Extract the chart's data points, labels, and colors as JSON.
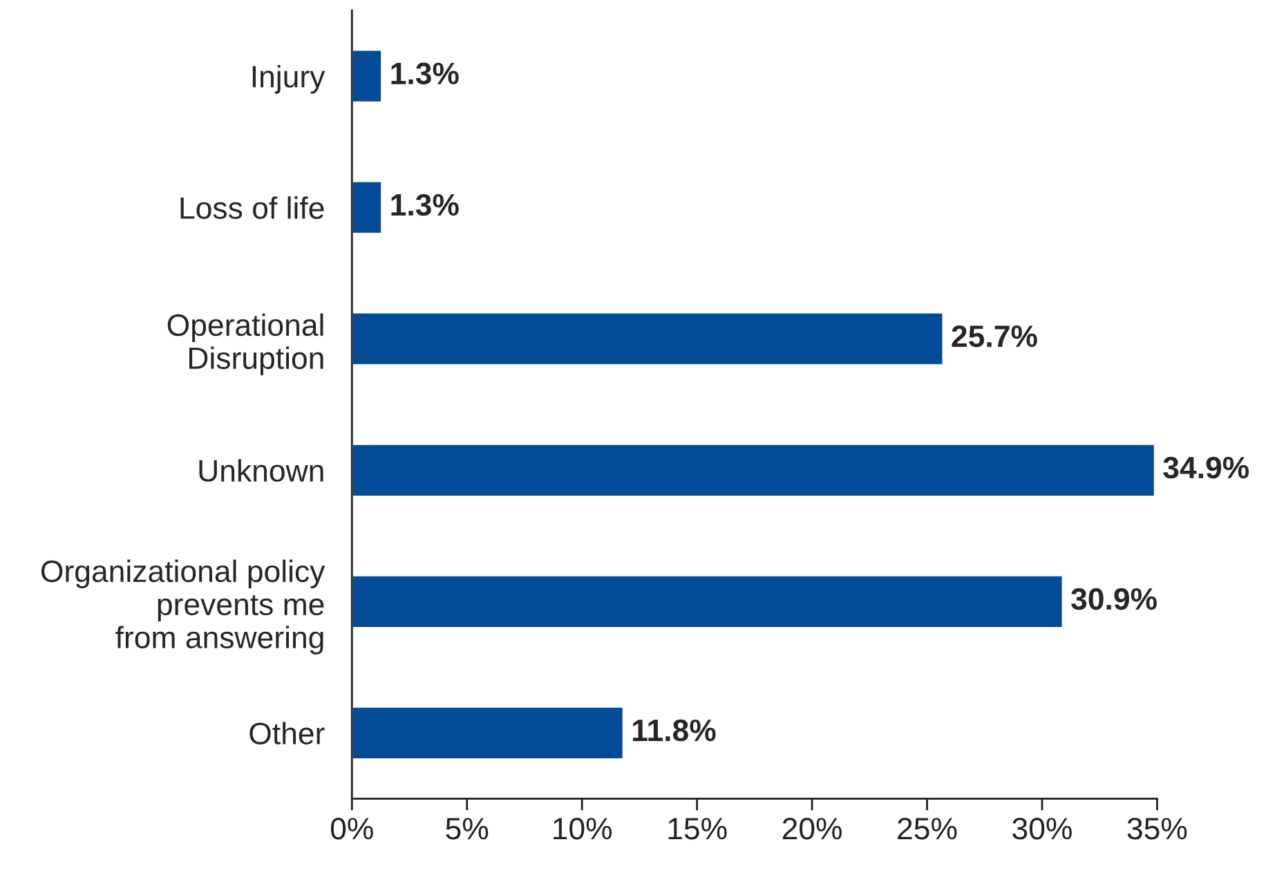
{
  "chart_data": {
    "type": "bar",
    "orientation": "horizontal",
    "categories": [
      "Injury",
      "Loss of life",
      "Operational\nDisruption",
      "Unknown",
      "Organizational policy\nprevents me\nfrom answering",
      "Other"
    ],
    "values": [
      1.3,
      1.3,
      25.7,
      34.9,
      30.9,
      11.8
    ],
    "value_labels": [
      "1.3%",
      "1.3%",
      "25.7%",
      "34.9%",
      "30.9%",
      "11.8%"
    ],
    "color": "#034b96",
    "xlim": [
      0,
      35
    ],
    "xticks": [
      {
        "value": 0,
        "label": "0%"
      },
      {
        "value": 5,
        "label": "5%"
      },
      {
        "value": 10,
        "label": "10%"
      },
      {
        "value": 15,
        "label": "15%"
      },
      {
        "value": 20,
        "label": "20%"
      },
      {
        "value": 25,
        "label": "25%"
      },
      {
        "value": 30,
        "label": "30%"
      },
      {
        "value": 35,
        "label": "35%"
      }
    ],
    "grid": false,
    "legend": false
  }
}
